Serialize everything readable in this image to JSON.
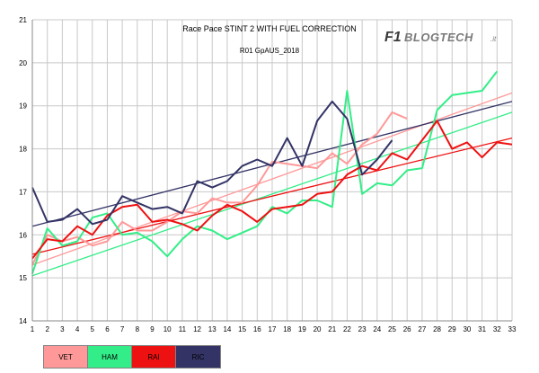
{
  "chart_data": {
    "type": "line",
    "title": "Race Pace STINT 2 WITH FUEL CORRECTION",
    "subtitle": "R01 GpAUS_2018",
    "logo": {
      "prefix": "F1",
      "name": "BLOGTECH",
      "suffix": ".it"
    },
    "x": [
      1,
      2,
      3,
      4,
      5,
      6,
      7,
      8,
      9,
      10,
      11,
      12,
      13,
      14,
      15,
      16,
      17,
      18,
      19,
      20,
      21,
      22,
      23,
      24,
      25,
      26,
      27,
      28,
      29,
      30,
      31,
      32,
      33
    ],
    "xlim": [
      1,
      33
    ],
    "ylim": [
      14,
      21
    ],
    "yticks": [
      14,
      15,
      16,
      17,
      18,
      19,
      20,
      21
    ],
    "grid": true,
    "legend_position": "bottom-left",
    "series": [
      {
        "name": "VET",
        "color": "#ff9999",
        "values": [
          15.3,
          16.0,
          15.85,
          15.95,
          15.75,
          15.85,
          16.3,
          16.1,
          16.1,
          16.3,
          16.55,
          16.5,
          16.85,
          16.75,
          16.75,
          17.15,
          17.7,
          17.65,
          17.6,
          17.55,
          17.9,
          17.65,
          18.1,
          18.35,
          18.85,
          18.7,
          null,
          null,
          null,
          null,
          null,
          null,
          null
        ],
        "trend": [
          15.3,
          19.3
        ]
      },
      {
        "name": "HAM",
        "color": "#33ee88",
        "values": [
          15.1,
          16.15,
          15.75,
          15.85,
          16.4,
          16.5,
          16.0,
          16.05,
          15.85,
          15.5,
          15.9,
          16.2,
          16.1,
          15.9,
          16.05,
          16.2,
          16.65,
          16.5,
          16.8,
          16.8,
          16.65,
          19.35,
          16.95,
          17.2,
          17.15,
          17.5,
          17.55,
          18.9,
          19.25,
          19.3,
          19.35,
          19.8,
          null
        ],
        "trend": [
          15.05,
          18.85
        ]
      },
      {
        "name": "RAI",
        "color": "#ee1111",
        "values": [
          15.45,
          15.9,
          15.85,
          16.2,
          16.0,
          16.45,
          16.65,
          16.7,
          16.3,
          16.35,
          16.25,
          16.1,
          16.45,
          16.7,
          16.55,
          16.3,
          16.6,
          16.65,
          16.7,
          16.95,
          17.0,
          17.4,
          17.6,
          17.5,
          17.9,
          17.75,
          18.2,
          18.65,
          18.0,
          18.15,
          17.8,
          18.15,
          18.1
        ],
        "trend": [
          15.55,
          18.25
        ]
      },
      {
        "name": "RIC",
        "color": "#333366",
        "values": [
          17.1,
          16.3,
          16.35,
          16.6,
          16.25,
          16.35,
          16.9,
          16.75,
          16.6,
          16.65,
          16.5,
          17.25,
          17.1,
          17.25,
          17.6,
          17.75,
          17.6,
          18.25,
          17.6,
          18.65,
          19.1,
          18.7,
          17.4,
          17.75,
          18.2,
          null,
          null,
          null,
          null,
          null,
          null,
          null,
          null
        ],
        "trend": [
          16.2,
          19.1
        ]
      }
    ]
  }
}
